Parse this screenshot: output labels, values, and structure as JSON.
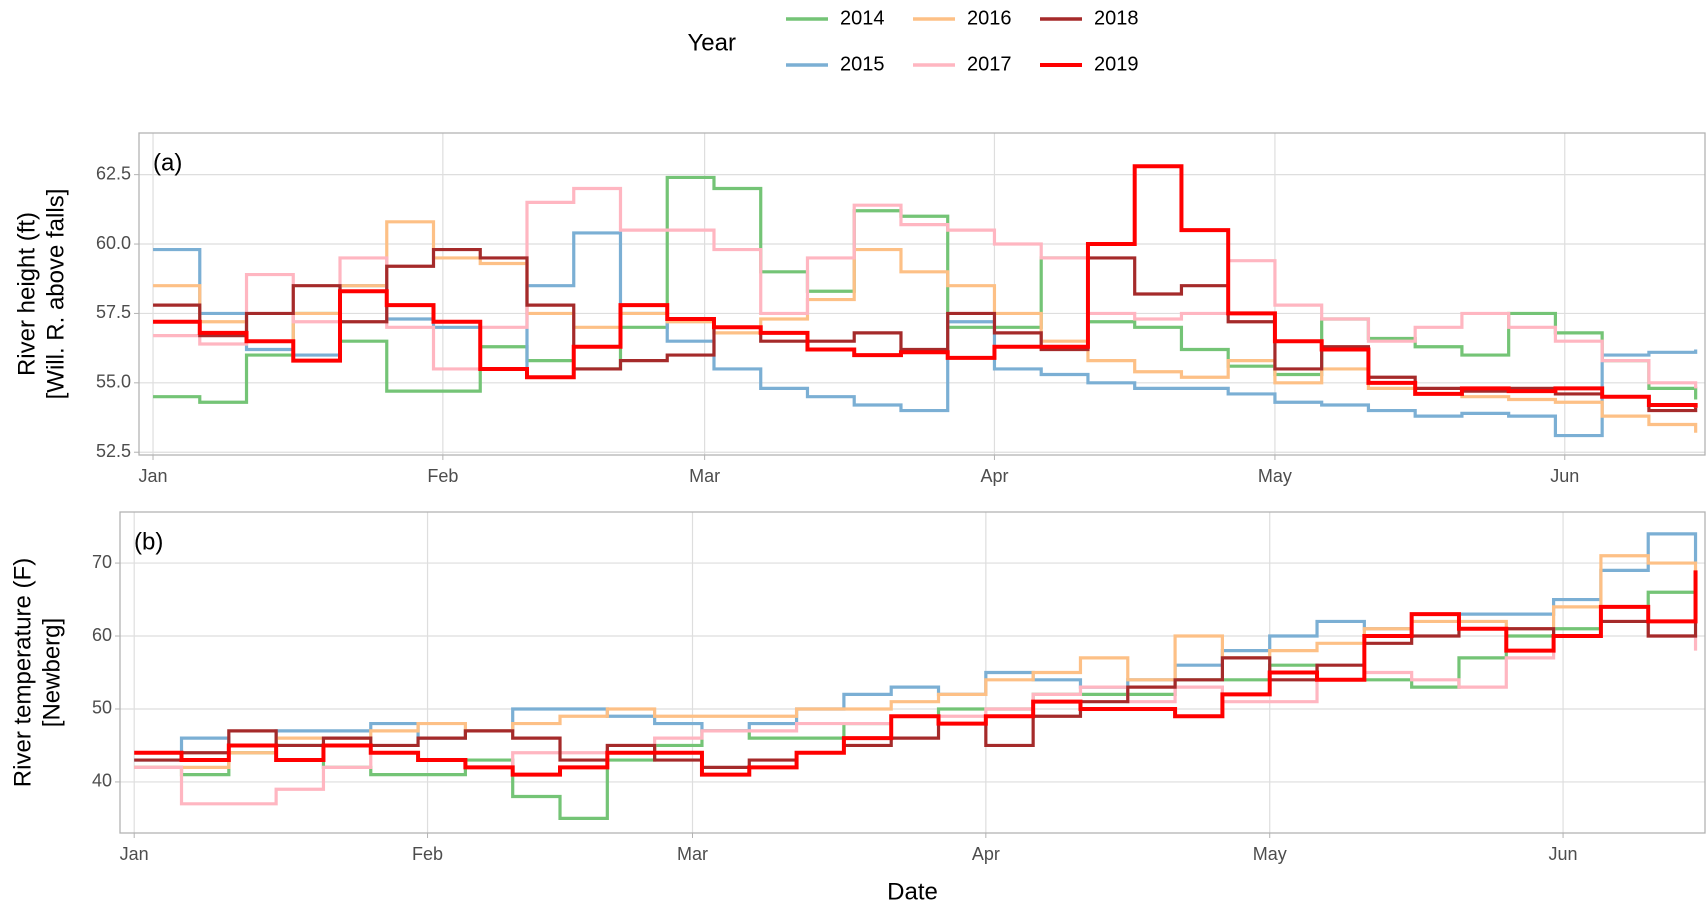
{
  "legend_title": "Year",
  "chart_data": [
    {
      "type": "line",
      "step": true,
      "annotation": "(a)",
      "ylabel": [
        "River height (ft)",
        "[Will. R. above falls]"
      ],
      "x": [
        1,
        6,
        11,
        16,
        21,
        26,
        31,
        36,
        41,
        46,
        51,
        56,
        61,
        66,
        71,
        76,
        81,
        86,
        91,
        96,
        101,
        106,
        111,
        116,
        121,
        126,
        131,
        136,
        141,
        146,
        151,
        156,
        161,
        166
      ],
      "xlim": [
        -0.5,
        167
      ],
      "xticks": [
        {
          "value": 1,
          "label": "Jan"
        },
        {
          "value": 32,
          "label": "Feb"
        },
        {
          "value": 60,
          "label": "Mar"
        },
        {
          "value": 91,
          "label": "Apr"
        },
        {
          "value": 121,
          "label": "May"
        },
        {
          "value": 152,
          "label": "Jun"
        }
      ],
      "ylim": [
        52.4,
        64
      ],
      "yticks": [
        52.5,
        {
          "value": 55,
          "label": "55.0"
        },
        57.5,
        {
          "value": 60,
          "label": "60.0"
        },
        62.5
      ],
      "grid": true,
      "series": [
        {
          "name": "2014",
          "color": "#74c476",
          "values": [
            54.5,
            54.3,
            56.0,
            57.5,
            56.5,
            54.7,
            54.7,
            56.3,
            55.8,
            55.5,
            57.0,
            62.4,
            62.0,
            59.0,
            58.3,
            61.2,
            61.0,
            57.0,
            57.0,
            59.5,
            57.2,
            57.0,
            56.2,
            55.6,
            55.3,
            57.3,
            56.6,
            56.3,
            56.0,
            57.5,
            56.8,
            55.8,
            54.8,
            54.4
          ]
        },
        {
          "name": "2015",
          "color": "#7bafd4",
          "values": [
            59.8,
            57.5,
            56.2,
            56.0,
            58.5,
            57.3,
            57.0,
            55.5,
            58.5,
            60.4,
            57.5,
            56.5,
            55.5,
            54.8,
            54.5,
            54.2,
            54.0,
            57.2,
            55.5,
            55.3,
            55.0,
            54.8,
            54.8,
            54.6,
            54.3,
            54.2,
            54.0,
            53.8,
            53.9,
            53.8,
            53.1,
            56.0,
            56.1,
            56.2
          ]
        },
        {
          "name": "2016",
          "color": "#fdc086",
          "values": [
            58.5,
            57.2,
            56.5,
            57.5,
            58.5,
            60.8,
            59.5,
            59.3,
            57.5,
            57.0,
            57.5,
            57.2,
            56.8,
            57.3,
            58.0,
            59.8,
            59.0,
            58.5,
            57.5,
            56.5,
            55.8,
            55.4,
            55.2,
            55.8,
            55.0,
            55.5,
            54.8,
            54.6,
            54.5,
            54.4,
            54.3,
            53.8,
            53.5,
            53.2
          ]
        },
        {
          "name": "2017",
          "color": "#ffb6c1",
          "values": [
            56.7,
            56.4,
            58.9,
            57.2,
            59.5,
            57.0,
            55.5,
            57.0,
            61.5,
            62.0,
            60.5,
            60.5,
            59.8,
            57.5,
            59.5,
            61.4,
            60.7,
            60.5,
            60.0,
            59.5,
            57.5,
            57.3,
            57.5,
            59.4,
            57.8,
            57.3,
            56.5,
            57.0,
            57.5,
            57.0,
            56.5,
            55.8,
            55.0,
            54.8
          ]
        },
        {
          "name": "2018",
          "color": "#a52a2a",
          "values": [
            57.8,
            56.7,
            57.5,
            58.5,
            57.2,
            59.2,
            59.8,
            59.5,
            57.8,
            55.5,
            55.8,
            56.0,
            57.0,
            56.5,
            56.5,
            56.8,
            56.2,
            57.5,
            56.8,
            56.2,
            59.5,
            58.2,
            58.5,
            57.2,
            55.5,
            56.3,
            55.2,
            54.8,
            54.7,
            54.8,
            54.6,
            54.5,
            54.0,
            54.1
          ]
        },
        {
          "name": "2019",
          "color": "#ff0000",
          "values": [
            57.2,
            56.8,
            56.5,
            55.8,
            58.3,
            57.8,
            57.2,
            55.5,
            55.2,
            56.3,
            57.8,
            57.3,
            57.0,
            56.8,
            56.2,
            56.0,
            56.1,
            55.9,
            56.3,
            56.3,
            60.0,
            62.8,
            60.5,
            57.5,
            56.5,
            56.2,
            55.0,
            54.6,
            54.8,
            54.7,
            54.8,
            54.5,
            54.2,
            54.1
          ]
        }
      ]
    },
    {
      "type": "line",
      "step": true,
      "annotation": "(b)",
      "ylabel": [
        "River temperature (F)",
        "[Newberg]"
      ],
      "xlabel": "Date",
      "x": [
        1,
        6,
        11,
        16,
        21,
        26,
        31,
        36,
        41,
        46,
        51,
        56,
        61,
        66,
        71,
        76,
        81,
        86,
        91,
        96,
        101,
        106,
        111,
        116,
        121,
        126,
        131,
        136,
        141,
        146,
        151,
        156,
        161,
        166
      ],
      "xlim": [
        -0.5,
        167
      ],
      "xticks": [
        {
          "value": 1,
          "label": "Jan"
        },
        {
          "value": 32,
          "label": "Feb"
        },
        {
          "value": 60,
          "label": "Mar"
        },
        {
          "value": 91,
          "label": "Apr"
        },
        {
          "value": 121,
          "label": "May"
        },
        {
          "value": 152,
          "label": "Jun"
        }
      ],
      "ylim": [
        33,
        77
      ],
      "yticks": [
        40,
        50,
        60,
        70
      ],
      "grid": true,
      "series": [
        {
          "name": "2014",
          "color": "#74c476",
          "values": [
            42,
            41,
            44,
            45,
            42,
            41,
            41,
            43,
            38,
            35,
            43,
            45,
            47,
            46,
            46,
            48,
            49,
            50,
            50,
            52,
            52,
            52,
            54,
            54,
            56,
            54,
            54,
            53,
            57,
            60,
            61,
            64,
            66,
            65
          ]
        },
        {
          "name": "2015",
          "color": "#7bafd4",
          "values": [
            43,
            46,
            45,
            47,
            47,
            48,
            46,
            47,
            50,
            50,
            49,
            48,
            47,
            48,
            50,
            52,
            53,
            52,
            55,
            54,
            53,
            54,
            56,
            58,
            60,
            62,
            61,
            63,
            63,
            63,
            65,
            69,
            74,
            70
          ]
        },
        {
          "name": "2016",
          "color": "#fdc086",
          "values": [
            42,
            42,
            44,
            46,
            46,
            47,
            48,
            47,
            48,
            49,
            50,
            49,
            49,
            49,
            50,
            50,
            51,
            52,
            54,
            55,
            57,
            54,
            60,
            57,
            58,
            59,
            61,
            62,
            62,
            61,
            64,
            71,
            70,
            63
          ]
        },
        {
          "name": "2017",
          "color": "#ffb6c1",
          "values": [
            42,
            37,
            37,
            39,
            42,
            44,
            43,
            42,
            44,
            44,
            45,
            46,
            47,
            47,
            48,
            48,
            49,
            49,
            50,
            52,
            53,
            51,
            53,
            51,
            51,
            54,
            55,
            54,
            53,
            57,
            60,
            62,
            60,
            58
          ]
        },
        {
          "name": "2018",
          "color": "#a52a2a",
          "values": [
            43,
            44,
            47,
            45,
            46,
            45,
            46,
            47,
            46,
            43,
            45,
            43,
            42,
            43,
            44,
            45,
            46,
            48,
            45,
            49,
            51,
            53,
            54,
            57,
            54,
            56,
            59,
            60,
            61,
            61,
            60,
            62,
            60,
            62
          ]
        },
        {
          "name": "2019",
          "color": "#ff0000",
          "values": [
            44,
            43,
            45,
            43,
            45,
            44,
            43,
            42,
            41,
            42,
            44,
            44,
            41,
            42,
            44,
            46,
            49,
            48,
            49,
            51,
            50,
            50,
            49,
            52,
            55,
            54,
            60,
            63,
            61,
            58,
            60,
            64,
            62,
            69
          ]
        }
      ]
    }
  ]
}
